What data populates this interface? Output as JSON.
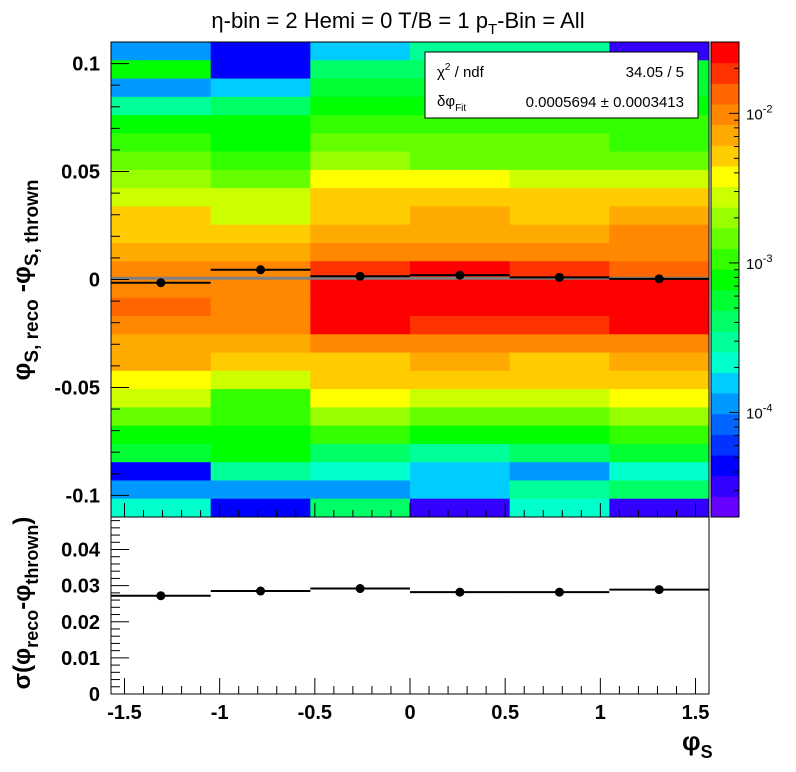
{
  "chart_data": [
    {
      "type": "heatmap",
      "title": "η-bin = 2 Hemi = 0 T/B = 1 pT-Bin = All",
      "title_parts": {
        "main": "η-bin = 2 Hemi = 0 T/B = 1 p",
        "sub": "T",
        "tail": "-Bin = All"
      },
      "ylabel_parts": {
        "p1": "φ",
        "s1": "S, reco",
        "p2": " -φ",
        "s2": "S, thrown"
      },
      "xlim": [
        -1.5708,
        1.5708
      ],
      "ylim": [
        -0.11,
        0.11
      ],
      "log_z": true,
      "zlim": [
        2e-05,
        0.03
      ],
      "x_edges": [
        -1.5708,
        -1.0472,
        -0.5236,
        0.0,
        0.5236,
        1.0472,
        1.5708
      ],
      "y_bins": 26,
      "y_tick_labels": [
        "-0.1",
        "-0.05",
        "0",
        "0.05",
        "0.1"
      ],
      "y_ticks": [
        -0.1,
        -0.05,
        0,
        0.05,
        0.1
      ],
      "z_tick_labels": [
        {
          "value": 0.0001,
          "base": "10",
          "exp": "-4"
        },
        {
          "value": 0.001,
          "base": "10",
          "exp": "-3"
        },
        {
          "value": 0.01,
          "base": "10",
          "exp": "-2"
        }
      ],
      "palette": [
        "#6600ff",
        "#3300ff",
        "#0000ff",
        "#0033ff",
        "#0066ff",
        "#0099ff",
        "#00ccff",
        "#00ffcc",
        "#00ff99",
        "#00ff66",
        "#00ff33",
        "#00ff00",
        "#33ff00",
        "#66ff00",
        "#99ff00",
        "#ccff00",
        "#ffff00",
        "#ffcc00",
        "#ffaa00",
        "#ff8800",
        "#ff6600",
        "#ff3300",
        "#ff0000"
      ],
      "z_values_top_to_bottom": [
        [
          0.00013,
          4e-05,
          0.00016,
          0.0003,
          0.0003,
          3e-05
        ],
        [
          0.0009,
          4e-05,
          0.0004,
          0.0004,
          0.0005,
          0.0006
        ],
        [
          0.0001,
          0.00014,
          0.0006,
          0.0005,
          0.0004,
          0.0006
        ],
        [
          0.0003,
          0.00035,
          0.0008,
          0.0008,
          0.0008,
          0.0008
        ],
        [
          0.0007,
          0.0008,
          0.001,
          0.0011,
          0.0011,
          0.001
        ],
        [
          0.001,
          0.0009,
          0.0014,
          0.0014,
          0.0013,
          0.0012
        ],
        [
          0.0014,
          0.001,
          0.002,
          0.0016,
          0.0015,
          0.0014
        ],
        [
          0.002,
          0.0014,
          0.004,
          0.0035,
          0.003,
          0.0025
        ],
        [
          0.003,
          0.0025,
          0.005,
          0.0045,
          0.0045,
          0.005
        ],
        [
          0.005,
          0.003,
          0.0055,
          0.008,
          0.0055,
          0.0065
        ],
        [
          0.006,
          0.005,
          0.008,
          0.008,
          0.008,
          0.01
        ],
        [
          0.008,
          0.007,
          0.011,
          0.01,
          0.011,
          0.011
        ],
        [
          0.01,
          0.01,
          0.02,
          0.025,
          0.018,
          0.012
        ],
        [
          0.011,
          0.01,
          0.025,
          0.025,
          0.022,
          0.025
        ],
        [
          0.012,
          0.011,
          0.025,
          0.025,
          0.025,
          0.025
        ],
        [
          0.009,
          0.01,
          0.022,
          0.02,
          0.02,
          0.025
        ],
        [
          0.008,
          0.008,
          0.01,
          0.01,
          0.01,
          0.011
        ],
        [
          0.007,
          0.006,
          0.0055,
          0.008,
          0.0055,
          0.008
        ],
        [
          0.004,
          0.003,
          0.0045,
          0.005,
          0.0045,
          0.005
        ],
        [
          0.003,
          0.001,
          0.0035,
          0.003,
          0.003,
          0.004
        ],
        [
          0.0014,
          0.001,
          0.002,
          0.0015,
          0.0015,
          0.002
        ],
        [
          0.0008,
          0.0008,
          0.001,
          0.0009,
          0.0008,
          0.001
        ],
        [
          0.0006,
          0.0007,
          0.0004,
          0.0003,
          0.0004,
          0.0006
        ],
        [
          4e-05,
          0.0003,
          0.0002,
          0.00015,
          0.0001,
          0.0002
        ],
        [
          0.0001,
          0.0001,
          0.0001,
          0.00016,
          0.0003,
          0.00035
        ],
        [
          0.0002,
          4e-05,
          0.0004,
          3e-05,
          0.0002,
          3e-05
        ]
      ],
      "profile_points": [
        {
          "x": -1.309,
          "y": -0.0015,
          "xerr": 0.2618
        },
        {
          "x": -0.785,
          "y": 0.0045,
          "xerr": 0.2618
        },
        {
          "x": -0.262,
          "y": 0.0015,
          "xerr": 0.2618
        },
        {
          "x": 0.262,
          "y": 0.002,
          "xerr": 0.2618
        },
        {
          "x": 0.785,
          "y": 0.001,
          "xerr": 0.2618
        },
        {
          "x": 1.309,
          "y": 0.0003,
          "xerr": 0.2618
        }
      ],
      "fit_line_y": 0.0005694,
      "stats_box": {
        "row1_label_base": "χ",
        "row1_label_exp": "2",
        "row1_label_tail": " / ndf",
        "row1_value": "34.05 / 5",
        "row2_label_base": "δφ",
        "row2_label_sub": "Fit",
        "row2_value": "0.0005694 ± 0.0003413"
      }
    },
    {
      "type": "scatter",
      "ylabel_parts": {
        "p1": "σ(φ",
        "s1": "reco",
        "p2": "-φ",
        "s2": "thrown",
        "p3": ")"
      },
      "xlabel_parts": {
        "base": "φ",
        "sub": "S"
      },
      "xlim": [
        -1.5708,
        1.5708
      ],
      "ylim": [
        0,
        0.049
      ],
      "x_tick_labels": [
        "-1.5",
        "-1",
        "-0.5",
        "0",
        "0.5",
        "1",
        "1.5"
      ],
      "x_ticks": [
        -1.5,
        -1,
        -0.5,
        0,
        0.5,
        1,
        1.5
      ],
      "y_tick_labels": [
        "0",
        "0.01",
        "0.02",
        "0.03",
        "0.04"
      ],
      "y_ticks": [
        0,
        0.01,
        0.02,
        0.03,
        0.04
      ],
      "points": [
        {
          "x": -1.309,
          "y": 0.0272,
          "xerr": 0.2618
        },
        {
          "x": -0.785,
          "y": 0.0285,
          "xerr": 0.2618
        },
        {
          "x": -0.262,
          "y": 0.0292,
          "xerr": 0.2618
        },
        {
          "x": 0.262,
          "y": 0.0282,
          "xerr": 0.2618
        },
        {
          "x": 0.785,
          "y": 0.0282,
          "xerr": 0.2618
        },
        {
          "x": 1.309,
          "y": 0.0289,
          "xerr": 0.2618
        }
      ]
    }
  ]
}
